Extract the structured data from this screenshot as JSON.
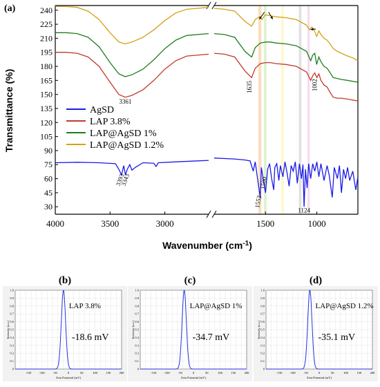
{
  "figure": {
    "panel_labels": [
      "(a)",
      "(b)",
      "(c)",
      "(d)"
    ]
  },
  "chart_data": [
    {
      "type": "line",
      "panel": "(a)",
      "ylabel": "Transmittance (%)",
      "xlabel": "Wavenumber (cm⁻¹)",
      "xlim": [
        4000,
        600
      ],
      "ylim": [
        22,
        245
      ],
      "x_axis_break": [
        2600,
        2000
      ],
      "x_ticks": [
        4000,
        3500,
        3000,
        1500,
        1000
      ],
      "y_ticks": [
        30,
        45,
        60,
        75,
        90,
        105,
        120,
        135,
        150,
        165,
        180,
        195,
        210,
        225,
        240
      ],
      "series": [
        {
          "name": "AgSD",
          "color": "#1a1ae6",
          "points": [
            [
              4000,
              77
            ],
            [
              3800,
              77.5
            ],
            [
              3600,
              77
            ],
            [
              3450,
              76
            ],
            [
              3420,
              70
            ],
            [
              3395,
              64
            ],
            [
              3375,
              74
            ],
            [
              3360,
              64
            ],
            [
              3343,
              70
            ],
            [
              3320,
              75
            ],
            [
              3300,
              69
            ],
            [
              3270,
              72
            ],
            [
              3200,
              77
            ],
            [
              3100,
              76.5
            ],
            [
              3080,
              73
            ],
            [
              3060,
              77
            ],
            [
              2900,
              78
            ],
            [
              2700,
              79
            ],
            [
              2600,
              79.5
            ],
            [
              2000,
              82
            ],
            [
              1800,
              81
            ],
            [
              1700,
              80
            ],
            [
              1650,
              79
            ],
            [
              1620,
              68
            ],
            [
              1600,
              78
            ],
            [
              1580,
              62
            ],
            [
              1552,
              40
            ],
            [
              1540,
              72
            ],
            [
              1520,
              58
            ],
            [
              1500,
              45
            ],
            [
              1480,
              70
            ],
            [
              1460,
              76
            ],
            [
              1440,
              60
            ],
            [
              1420,
              48
            ],
            [
              1410,
              72
            ],
            [
              1390,
              76
            ],
            [
              1370,
              58
            ],
            [
              1355,
              74
            ],
            [
              1330,
              62
            ],
            [
              1310,
              78
            ],
            [
              1290,
              66
            ],
            [
              1270,
              52
            ],
            [
              1250,
              74
            ],
            [
              1230,
              68
            ],
            [
              1210,
              78
            ],
            [
              1190,
              55
            ],
            [
              1170,
              76
            ],
            [
              1150,
              60
            ],
            [
              1135,
              75
            ],
            [
              1124,
              30
            ],
            [
              1110,
              70
            ],
            [
              1095,
              50
            ],
            [
              1080,
              76
            ],
            [
              1060,
              60
            ],
            [
              1040,
              76
            ],
            [
              1020,
              68
            ],
            [
              1000,
              78
            ],
            [
              980,
              62
            ],
            [
              960,
              76
            ],
            [
              930,
              58
            ],
            [
              900,
              74
            ],
            [
              880,
              64
            ],
            [
              850,
              40
            ],
            [
              830,
              72
            ],
            [
              800,
              60
            ],
            [
              780,
              74
            ],
            [
              760,
              45
            ],
            [
              740,
              70
            ],
            [
              720,
              60
            ],
            [
              700,
              72
            ],
            [
              680,
              58
            ],
            [
              650,
              68
            ],
            [
              620,
              48
            ],
            [
              600,
              62
            ]
          ]
        },
        {
          "name": "LAP 3.8%",
          "color": "#c0392b",
          "points": [
            [
              4000,
              195
            ],
            [
              3900,
              195
            ],
            [
              3800,
              194
            ],
            [
              3700,
              190
            ],
            [
              3600,
              180
            ],
            [
              3500,
              163
            ],
            [
              3420,
              150
            ],
            [
              3361,
              147
            ],
            [
              3300,
              149
            ],
            [
              3200,
              155
            ],
            [
              3100,
              165
            ],
            [
              3000,
              177
            ],
            [
              2900,
              186
            ],
            [
              2800,
              191
            ],
            [
              2600,
              193
            ],
            [
              2000,
              194
            ],
            [
              1900,
              193
            ],
            [
              1800,
              190
            ],
            [
              1700,
              175
            ],
            [
              1635,
              168
            ],
            [
              1600,
              178
            ],
            [
              1550,
              183
            ],
            [
              1500,
              184
            ],
            [
              1450,
              184
            ],
            [
              1400,
              183
            ],
            [
              1300,
              182
            ],
            [
              1200,
              180
            ],
            [
              1100,
              174
            ],
            [
              1060,
              165
            ],
            [
              1040,
              170
            ],
            [
              1020,
              173
            ],
            [
              1000,
              168
            ],
            [
              980,
              172
            ],
            [
              960,
              165
            ],
            [
              930,
              160
            ],
            [
              900,
              158
            ],
            [
              870,
              152
            ],
            [
              840,
              147
            ],
            [
              800,
              146
            ],
            [
              760,
              146
            ],
            [
              700,
              145
            ],
            [
              650,
              144
            ],
            [
              600,
              143
            ]
          ]
        },
        {
          "name": "LAP@AgSD 1%",
          "color": "#1e7d1e",
          "points": [
            [
              4000,
              216
            ],
            [
              3900,
              216
            ],
            [
              3800,
              215
            ],
            [
              3700,
              211
            ],
            [
              3600,
              201
            ],
            [
              3500,
              184
            ],
            [
              3420,
              172
            ],
            [
              3361,
              169
            ],
            [
              3300,
              171
            ],
            [
              3200,
              177
            ],
            [
              3100,
              187
            ],
            [
              3000,
              199
            ],
            [
              2900,
              208
            ],
            [
              2800,
              213
            ],
            [
              2600,
              215
            ],
            [
              2000,
              215
            ],
            [
              1900,
              214
            ],
            [
              1800,
              211
            ],
            [
              1700,
              196
            ],
            [
              1635,
              190
            ],
            [
              1600,
              200
            ],
            [
              1550,
              205
            ],
            [
              1500,
              206
            ],
            [
              1450,
              206
            ],
            [
              1400,
              205
            ],
            [
              1300,
              204
            ],
            [
              1200,
              202
            ],
            [
              1100,
              196
            ],
            [
              1060,
              186
            ],
            [
              1040,
              192
            ],
            [
              1020,
              194
            ],
            [
              1002,
              182
            ],
            [
              980,
              190
            ],
            [
              960,
              185
            ],
            [
              930,
              180
            ],
            [
              900,
              178
            ],
            [
              870,
              173
            ],
            [
              840,
              168
            ],
            [
              800,
              167
            ],
            [
              760,
              166
            ],
            [
              700,
              165
            ],
            [
              650,
              164
            ],
            [
              600,
              163
            ]
          ]
        },
        {
          "name": "LAP@AgSD 1.2%",
          "color": "#d4a017",
          "points": [
            [
              4000,
              244
            ],
            [
              3900,
              244
            ],
            [
              3800,
              243
            ],
            [
              3700,
              239
            ],
            [
              3600,
              230
            ],
            [
              3500,
              216
            ],
            [
              3420,
              206
            ],
            [
              3361,
              204
            ],
            [
              3300,
              206
            ],
            [
              3200,
              211
            ],
            [
              3100,
              219
            ],
            [
              3000,
              229
            ],
            [
              2900,
              237
            ],
            [
              2800,
              241
            ],
            [
              2600,
              243
            ],
            [
              2000,
              242
            ],
            [
              1900,
              241
            ],
            [
              1800,
              239
            ],
            [
              1700,
              228
            ],
            [
              1635,
              223
            ],
            [
              1600,
              230
            ],
            [
              1560,
              233
            ],
            [
              1535,
              230
            ],
            [
              1510,
              234
            ],
            [
              1500,
              235
            ],
            [
              1450,
              234
            ],
            [
              1400,
              233
            ],
            [
              1300,
              232
            ],
            [
              1200,
              230
            ],
            [
              1100,
              224
            ],
            [
              1070,
              219
            ],
            [
              1050,
              222
            ],
            [
              1030,
              220
            ],
            [
              1002,
              212
            ],
            [
              980,
              218
            ],
            [
              960,
              214
            ],
            [
              930,
              210
            ],
            [
              900,
              208
            ],
            [
              870,
              204
            ],
            [
              840,
              199
            ],
            [
              800,
              196
            ],
            [
              760,
              194
            ],
            [
              700,
              191
            ],
            [
              650,
              189
            ],
            [
              600,
              186
            ]
          ]
        }
      ],
      "highlight_bands": [
        [
          1570,
          1540,
          "#f5c28a"
        ],
        [
          1515,
          1490,
          "#bfe8a8"
        ],
        [
          1345,
          1320,
          "#fff2a8"
        ],
        [
          1175,
          1150,
          "#c8c8c8"
        ],
        [
          1090,
          1070,
          "#f0b8e0"
        ]
      ],
      "annotations": [
        "3361",
        "1635",
        "1002",
        "3393",
        "3343",
        "1552",
        "1500",
        "1124"
      ]
    },
    {
      "type": "line",
      "panel": "(b)",
      "series_label": "LAP 3.8%",
      "value_label": "-18.6 mV",
      "xlabel": "Zeta Potential (mV)",
      "ylabel": "Intensity (a.u.)",
      "xlim": [
        -200,
        200
      ],
      "ylim": [
        0,
        1.0
      ],
      "peak_center": -18.6,
      "peak_width": 8,
      "x_ticks": [
        -150,
        -100,
        -50,
        0,
        50,
        100,
        150,
        200
      ],
      "y_ticks": [
        0,
        0.1,
        0.2,
        0.3,
        0.4,
        0.5,
        0.6,
        0.7,
        0.8,
        0.9,
        1.0
      ]
    },
    {
      "type": "line",
      "panel": "(c)",
      "series_label": "LAP@AgSD 1%",
      "value_label": "-34.7 mV",
      "xlabel": "Zeta Potential (mV)",
      "ylabel": "Intensity (a.u.)",
      "xlim": [
        -200,
        200
      ],
      "ylim": [
        0,
        1.0
      ],
      "peak_center": -34.7,
      "peak_width": 8,
      "x_ticks": [
        -150,
        -100,
        -50,
        0,
        50,
        100,
        150,
        200
      ],
      "y_ticks": [
        0,
        0.1,
        0.2,
        0.3,
        0.4,
        0.5,
        0.6,
        0.7,
        0.8,
        0.9,
        1.0
      ]
    },
    {
      "type": "line",
      "panel": "(d)",
      "series_label": "LAP@AgSD 1.2%",
      "value_label": "-35.1 mV",
      "xlabel": "Zeta Potential (mV)",
      "ylabel": "Intensity (a.u.)",
      "xlim": [
        -200,
        200
      ],
      "ylim": [
        0,
        1.0
      ],
      "peak_center": -35.1,
      "peak_width": 8,
      "x_ticks": [
        -150,
        -100,
        -50,
        0,
        50,
        100,
        150,
        200
      ],
      "y_ticks": [
        0,
        0.1,
        0.2,
        0.3,
        0.4,
        0.5,
        0.6,
        0.7,
        0.8,
        0.9,
        1.0
      ]
    }
  ]
}
